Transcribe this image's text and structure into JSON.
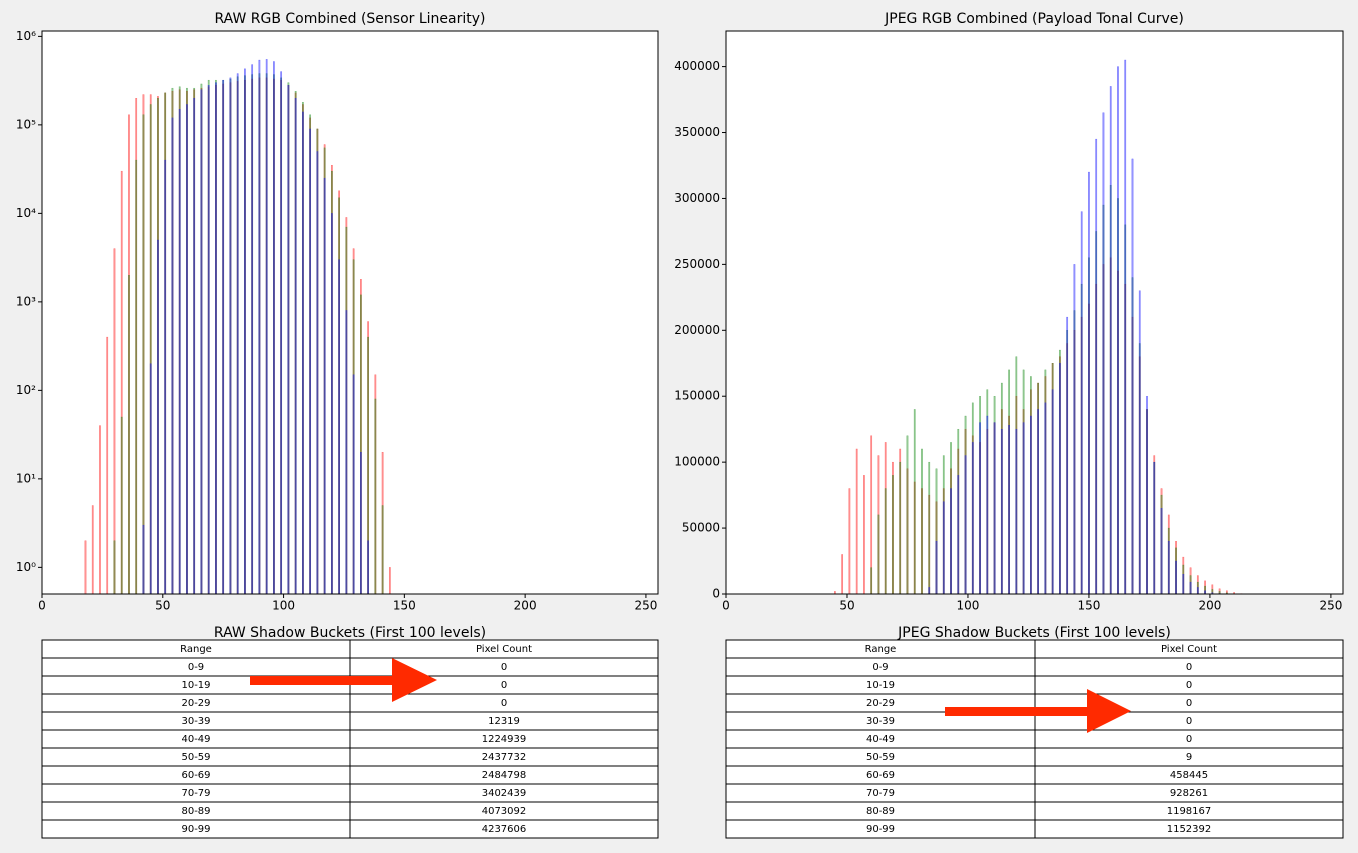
{
  "chart_data": [
    {
      "type": "histogram",
      "title": "RAW RGB Combined (Sensor Linearity)",
      "log_scale": true,
      "xlim": [
        0,
        255
      ],
      "xticks": [
        0,
        50,
        100,
        150,
        200,
        250
      ],
      "ylim": [
        0.5,
        1150000
      ],
      "yticks": [
        {
          "value": 1,
          "label": "10⁰"
        },
        {
          "value": 10,
          "label": "10¹"
        },
        {
          "value": 100,
          "label": "10²"
        },
        {
          "value": 1000,
          "label": "10³"
        },
        {
          "value": 10000,
          "label": "10⁴"
        },
        {
          "value": 100000,
          "label": "10⁵"
        },
        {
          "value": 1000000,
          "label": "10⁶"
        }
      ],
      "x": [
        18,
        21,
        24,
        27,
        30,
        33,
        36,
        39,
        42,
        45,
        48,
        51,
        54,
        57,
        60,
        63,
        66,
        69,
        72,
        75,
        78,
        81,
        84,
        87,
        90,
        93,
        96,
        99,
        102,
        105,
        108,
        111,
        114,
        117,
        120,
        123,
        126,
        129,
        132,
        135,
        138,
        141,
        144
      ],
      "series": [
        {
          "color": "#ff0000",
          "values": [
            2,
            5,
            40,
            400,
            4000,
            30000,
            130000,
            200000,
            220000,
            220000,
            210000,
            230000,
            240000,
            250000,
            240000,
            250000,
            260000,
            270000,
            280000,
            290000,
            300000,
            310000,
            320000,
            330000,
            340000,
            340000,
            330000,
            320000,
            280000,
            230000,
            170000,
            120000,
            90000,
            60000,
            35000,
            18000,
            9000,
            4000,
            1800,
            600,
            150,
            20,
            1
          ]
        },
        {
          "color": "#008000",
          "values": [
            null,
            null,
            null,
            null,
            2,
            50,
            2000,
            40000,
            130000,
            170000,
            200000,
            230000,
            260000,
            270000,
            260000,
            260000,
            290000,
            320000,
            320000,
            320000,
            330000,
            350000,
            360000,
            370000,
            380000,
            380000,
            370000,
            340000,
            300000,
            240000,
            180000,
            130000,
            90000,
            55000,
            30000,
            15000,
            7000,
            3000,
            1200,
            400,
            80,
            5,
            null
          ]
        },
        {
          "color": "#0000ff",
          "values": [
            null,
            null,
            null,
            null,
            null,
            null,
            null,
            null,
            3,
            200,
            5000,
            40000,
            120000,
            150000,
            170000,
            200000,
            250000,
            280000,
            300000,
            320000,
            340000,
            380000,
            430000,
            480000,
            540000,
            550000,
            520000,
            400000,
            280000,
            200000,
            140000,
            90000,
            50000,
            25000,
            10000,
            3000,
            800,
            150,
            20,
            2,
            null,
            null,
            null
          ]
        }
      ]
    },
    {
      "type": "histogram",
      "title": "JPEG RGB Combined (Payload Tonal Curve)",
      "log_scale": false,
      "xlim": [
        0,
        255
      ],
      "xticks": [
        0,
        50,
        100,
        150,
        200,
        250
      ],
      "ylim": [
        0,
        427000
      ],
      "yticks": [
        0,
        50000,
        100000,
        150000,
        200000,
        250000,
        300000,
        350000,
        400000
      ],
      "x": [
        45,
        48,
        51,
        54,
        57,
        60,
        63,
        66,
        69,
        72,
        75,
        78,
        81,
        84,
        87,
        90,
        93,
        96,
        99,
        102,
        105,
        108,
        111,
        114,
        117,
        120,
        123,
        126,
        129,
        132,
        135,
        138,
        141,
        144,
        147,
        150,
        153,
        156,
        159,
        162,
        165,
        168,
        171,
        174,
        177,
        180,
        183,
        186,
        189,
        192,
        195,
        198,
        201,
        204,
        207,
        210,
        213
      ],
      "series": [
        {
          "color": "#ff0000",
          "values": [
            2000,
            30000,
            80000,
            110000,
            90000,
            120000,
            105000,
            115000,
            100000,
            110000,
            95000,
            85000,
            80000,
            75000,
            70000,
            80000,
            95000,
            110000,
            125000,
            120000,
            115000,
            125000,
            130000,
            140000,
            135000,
            150000,
            140000,
            155000,
            160000,
            165000,
            175000,
            180000,
            190000,
            200000,
            210000,
            220000,
            235000,
            250000,
            255000,
            245000,
            235000,
            210000,
            180000,
            140000,
            105000,
            80000,
            60000,
            40000,
            28000,
            20000,
            14000,
            10000,
            7000,
            4000,
            2500,
            1200,
            300
          ]
        },
        {
          "color": "#008000",
          "values": [
            null,
            null,
            null,
            null,
            null,
            20000,
            60000,
            80000,
            90000,
            100000,
            120000,
            140000,
            110000,
            100000,
            95000,
            105000,
            115000,
            125000,
            135000,
            145000,
            150000,
            155000,
            150000,
            160000,
            170000,
            180000,
            170000,
            165000,
            160000,
            170000,
            175000,
            185000,
            200000,
            215000,
            235000,
            255000,
            275000,
            295000,
            310000,
            300000,
            280000,
            240000,
            190000,
            140000,
            100000,
            75000,
            50000,
            35000,
            22000,
            14000,
            9000,
            6000,
            3500,
            2000,
            900,
            300,
            null
          ]
        },
        {
          "color": "#0000ff",
          "values": [
            null,
            null,
            null,
            null,
            null,
            null,
            null,
            null,
            null,
            null,
            null,
            null,
            null,
            5000,
            40000,
            70000,
            80000,
            90000,
            105000,
            115000,
            130000,
            135000,
            130000,
            125000,
            128000,
            125000,
            130000,
            135000,
            140000,
            145000,
            155000,
            175000,
            210000,
            250000,
            290000,
            320000,
            345000,
            365000,
            385000,
            400000,
            405000,
            330000,
            230000,
            150000,
            100000,
            65000,
            40000,
            25000,
            15000,
            9000,
            5000,
            2500,
            1000,
            400,
            null,
            null,
            null
          ]
        }
      ]
    }
  ],
  "tables": [
    {
      "title": "RAW Shadow Buckets (First 100 levels)",
      "header": [
        "Range",
        "Pixel Count"
      ],
      "rows": [
        [
          "0-9",
          "0"
        ],
        [
          "10-19",
          "0"
        ],
        [
          "20-29",
          "0"
        ],
        [
          "30-39",
          "12319"
        ],
        [
          "40-49",
          "1224939"
        ],
        [
          "50-59",
          "2437732"
        ],
        [
          "60-69",
          "2484798"
        ],
        [
          "70-79",
          "3402439"
        ],
        [
          "80-89",
          "4073092"
        ],
        [
          "90-99",
          "4237606"
        ]
      ]
    },
    {
      "title": "JPEG Shadow Buckets (First 100 levels)",
      "header": [
        "Range",
        "Pixel Count"
      ],
      "rows": [
        [
          "0-9",
          "0"
        ],
        [
          "10-19",
          "0"
        ],
        [
          "20-29",
          "0"
        ],
        [
          "30-39",
          "0"
        ],
        [
          "40-49",
          "0"
        ],
        [
          "50-59",
          "9"
        ],
        [
          "60-69",
          "458445"
        ],
        [
          "70-79",
          "928261"
        ],
        [
          "80-89",
          "1198167"
        ],
        [
          "90-99",
          "1152392"
        ]
      ]
    }
  ]
}
